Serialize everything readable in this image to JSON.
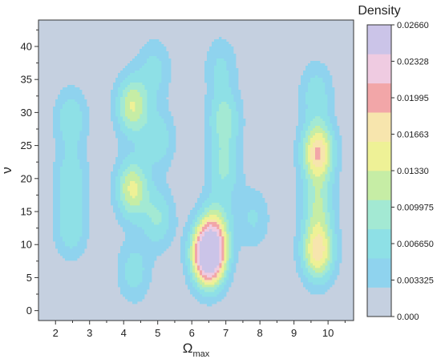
{
  "chart_data": {
    "type": "heatmap",
    "subtype": "filled-contour density",
    "xlabel": "Ω",
    "xlabel_subscript": "max",
    "ylabel": "ν",
    "x_ticks": [
      2,
      3,
      4,
      5,
      6,
      7,
      8,
      9,
      10
    ],
    "y_ticks": [
      0,
      5,
      10,
      15,
      20,
      25,
      30,
      35,
      40
    ],
    "xlim": [
      1.5,
      10.75
    ],
    "ylim": [
      -1.5,
      44
    ],
    "colorbar": {
      "title": "Density",
      "range": [
        0,
        0.0266
      ],
      "tick_labels": [
        "0.02660",
        "0.02328",
        "0.01995",
        "0.01663",
        "0.01330",
        "0.009975",
        "0.006650",
        "0.003325",
        "0.000"
      ],
      "tick_values": [
        0.0266,
        0.02328,
        0.01995,
        0.01663,
        0.0133,
        0.009975,
        0.00665,
        0.003325,
        0.0
      ],
      "colors": [
        "#c5d0e0",
        "#8fd3ee",
        "#8ee0e6",
        "#a3e9d3",
        "#c6eda5",
        "#eef196",
        "#f7e5ad",
        "#f2a6a8",
        "#efcbe1",
        "#cbc4e8"
      ]
    },
    "levels": [
      0.0014,
      0.0033,
      0.0055,
      0.0075,
      0.0095,
      0.0115,
      0.0133,
      0.0155,
      0.0185,
      0.0215
    ],
    "clusters": [
      {
        "x": 2.45,
        "y": 29,
        "density": 0.0052
      },
      {
        "x": 2.45,
        "y": 20,
        "density": 0.005
      },
      {
        "x": 2.45,
        "y": 12.5,
        "density": 0.005
      },
      {
        "x": 4.25,
        "y": 31,
        "density": 0.0095
      },
      {
        "x": 4.25,
        "y": 18.5,
        "density": 0.01
      },
      {
        "x": 4.3,
        "y": 6,
        "density": 0.0045
      },
      {
        "x": 4.9,
        "y": 36.5,
        "density": 0.004
      },
      {
        "x": 5.0,
        "y": 14,
        "density": 0.0055
      },
      {
        "x": 5.0,
        "y": 26,
        "density": 0.005
      },
      {
        "x": 6.5,
        "y": 8.5,
        "density": 0.0266
      },
      {
        "x": 6.7,
        "y": 13,
        "density": 0.006
      },
      {
        "x": 6.95,
        "y": 29,
        "density": 0.0065
      },
      {
        "x": 6.95,
        "y": 21.5,
        "density": 0.0055
      },
      {
        "x": 6.85,
        "y": 37,
        "density": 0.0035
      },
      {
        "x": 7.8,
        "y": 14,
        "density": 0.0035
      },
      {
        "x": 9.7,
        "y": 24,
        "density": 0.0135
      },
      {
        "x": 9.7,
        "y": 9,
        "density": 0.0125
      },
      {
        "x": 9.7,
        "y": 16,
        "density": 0.0065
      },
      {
        "x": 9.65,
        "y": 33,
        "density": 0.0045
      }
    ]
  }
}
